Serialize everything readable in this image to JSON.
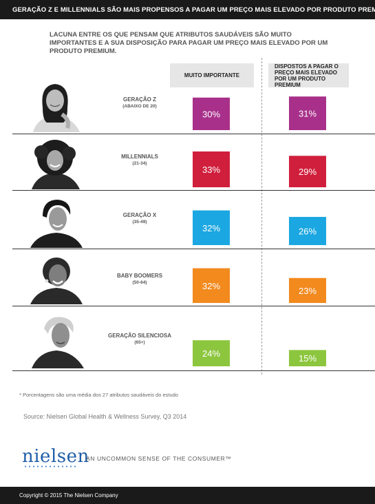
{
  "header": {
    "title": "GERAÇÃO Z E MILLENNIALS SÃO MAIS PROPENSOS A PAGAR UM PREÇO MAIS ELEVADO POR PRODUTO PREMIUM",
    "subtitle": "LACUNA ENTRE OS QUE PENSAM QUE ATRIBUTOS SAUDÁVEIS SÃO MUITO IMPORTANTES E A SUA DISPOSIÇÃO PARA PAGAR UM PREÇO MAIS ELEVADO POR UM PRODUTO PREMIUM."
  },
  "columns": {
    "important": "MUITO IMPORTANTE",
    "pay": "DISPOSTOS A PAGAR O PREÇO MAIS ELEVADO POR UM PRODUTO PREMIUM"
  },
  "chart_data": {
    "type": "bar",
    "categories": [
      "GERAÇÃO Z",
      "MILLENNIALS",
      "GERAÇÃO X",
      "BABY BOOMERS",
      "GERAÇÃO SILENCIOSA"
    ],
    "age_ranges": [
      "(ABAIXO DE 20)",
      "(21-34)",
      "(35-49)",
      "(50-64)",
      "(65+)"
    ],
    "series": [
      {
        "name": "MUITO IMPORTANTE",
        "values": [
          30,
          33,
          32,
          32,
          24
        ],
        "value_labels": [
          "30%",
          "33%",
          "32%",
          "32%",
          "24%"
        ]
      },
      {
        "name": "DISPOSTOS A PAGAR O PREÇO MAIS ELEVADO POR UM PRODUTO PREMIUM",
        "values": [
          31,
          29,
          26,
          23,
          15
        ],
        "value_labels": [
          "31%",
          "29%",
          "26%",
          "23%",
          "15%"
        ]
      }
    ],
    "colors": [
      "#a8308a",
      "#d01f3c",
      "#1ba7e1",
      "#f28a1e",
      "#8cc63e"
    ],
    "ylim": [
      0,
      33
    ],
    "title": "GERAÇÃO Z E MILLENNIALS SÃO MAIS PROPENSOS A PAGAR UM PREÇO MAIS ELEVADO POR PRODUTO PREMIUM",
    "xlabel": "",
    "ylabel": ""
  },
  "footnote": "* Porcentagens são uma média dos 27 atributos saudáveis do estudo",
  "source": "Source: Nielsen Global Health & Wellness Survey, Q3 2014",
  "brand": {
    "logo": "nielsen",
    "tagline": "AN UNCOMMON SENSE OF THE CONSUMER™"
  },
  "copyright": "Copyright © 2015 The Nielsen Company"
}
